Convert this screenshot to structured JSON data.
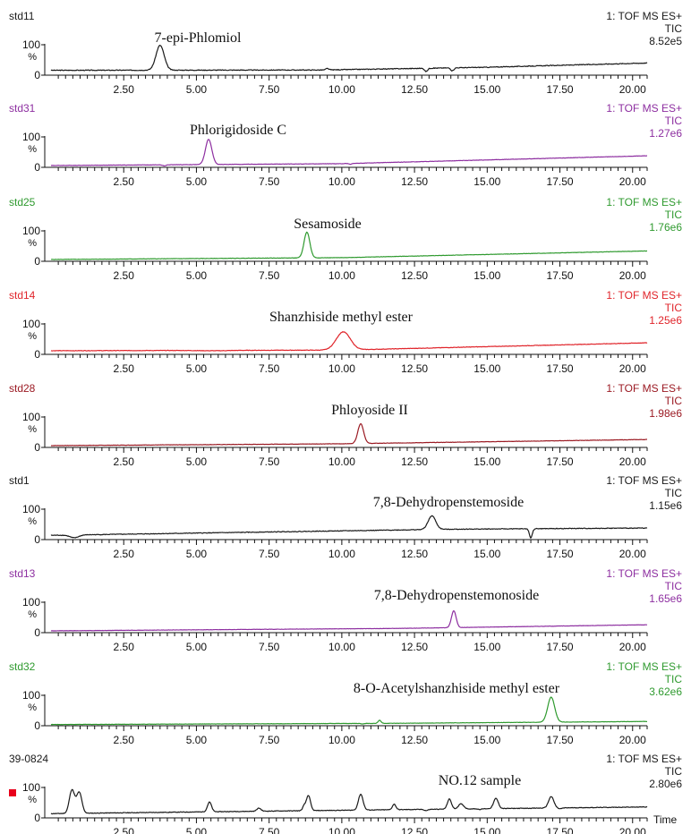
{
  "figure": {
    "x_axis_label": "Time",
    "y_tick_labels": [
      "100",
      "%",
      "0"
    ],
    "x_tick_labels": [
      "2.50",
      "5.00",
      "7.50",
      "10.00",
      "12.50",
      "15.00",
      "17.50",
      "20.00"
    ],
    "marker_color": "#e8001c"
  },
  "chart_data": [
    {
      "type": "line",
      "sample": "std11",
      "instrument": "1: TOF MS ES+",
      "trace_type": "TIC",
      "intensity": "8.52e5",
      "annotation": "7-epi-Phlomiol",
      "color": "#1a1a1a",
      "xlim": [
        0,
        20.5
      ],
      "ylim": [
        0,
        100
      ],
      "peaks": [
        {
          "rt": 3.75,
          "height": 98,
          "width": 0.14
        },
        {
          "rt": 9.5,
          "height": 22,
          "width": 0.05
        },
        {
          "rt": 12.9,
          "height": 12,
          "width": 0.05
        },
        {
          "rt": 13.8,
          "height": 14,
          "width": 0.05
        }
      ],
      "baseline": [
        [
          0,
          16
        ],
        [
          9.3,
          17
        ],
        [
          15,
          26
        ],
        [
          20.5,
          40
        ]
      ],
      "noise": 2.5
    },
    {
      "type": "line",
      "sample": "std31",
      "instrument": "1: TOF MS ES+",
      "trace_type": "TIC",
      "intensity": "1.27e6",
      "annotation": "Phlorigidoside C",
      "color": "#8d2ea0",
      "xlim": [
        0,
        20.5
      ],
      "ylim": [
        0,
        100
      ],
      "peaks": [
        {
          "rt": 5.42,
          "height": 92,
          "width": 0.11
        },
        {
          "rt": 3.9,
          "height": 5,
          "width": 0.06
        },
        {
          "rt": 10.3,
          "height": 10,
          "width": 0.04
        }
      ],
      "baseline": [
        [
          0,
          6
        ],
        [
          10,
          12
        ],
        [
          20.5,
          38
        ]
      ],
      "noise": 1.2
    },
    {
      "type": "line",
      "sample": "std25",
      "instrument": "1: TOF MS ES+",
      "trace_type": "TIC",
      "intensity": "1.76e6",
      "annotation": "Sesamoside",
      "color": "#2f9a2f",
      "xlim": [
        0,
        20.5
      ],
      "ylim": [
        0,
        100
      ],
      "peaks": [
        {
          "rt": 8.8,
          "height": 96,
          "width": 0.1
        },
        {
          "rt": 3.7,
          "height": 8,
          "width": 0.08
        }
      ],
      "baseline": [
        [
          0,
          6
        ],
        [
          10,
          12
        ],
        [
          20.5,
          34
        ]
      ],
      "noise": 1.2
    },
    {
      "type": "line",
      "sample": "std14",
      "instrument": "1: TOF MS ES+",
      "trace_type": "TIC",
      "intensity": "1.25e6",
      "annotation": "Shanzhiside methyl ester",
      "color": "#e0242a",
      "xlim": [
        0,
        20.5
      ],
      "ylim": [
        0,
        100
      ],
      "peaks": [
        {
          "rt": 10.05,
          "height": 74,
          "width": 0.24
        },
        {
          "rt": 5.6,
          "height": 12,
          "width": 0.5
        },
        {
          "rt": 0.85,
          "height": 12,
          "width": 0.06
        }
      ],
      "baseline": [
        [
          0,
          12
        ],
        [
          10,
          14
        ],
        [
          20.5,
          38
        ]
      ],
      "noise": 1.6
    },
    {
      "type": "line",
      "sample": "std28",
      "instrument": "1: TOF MS ES+",
      "trace_type": "TIC",
      "intensity": "1.98e6",
      "annotation": "Phloyoside II",
      "color": "#9b1a23",
      "xlim": [
        0,
        20.5
      ],
      "ylim": [
        0,
        100
      ],
      "peaks": [
        {
          "rt": 10.65,
          "height": 78,
          "width": 0.1
        }
      ],
      "baseline": [
        [
          0,
          6
        ],
        [
          10,
          12
        ],
        [
          20.5,
          26
        ]
      ],
      "noise": 1.2
    },
    {
      "type": "line",
      "sample": "std1",
      "instrument": "1: TOF MS ES+",
      "trace_type": "TIC",
      "intensity": "1.15e6",
      "annotation": "7,8-Dehydropenstemoside",
      "color": "#1a1a1a",
      "xlim": [
        0,
        20.5
      ],
      "ylim": [
        0,
        100
      ],
      "peaks": [
        {
          "rt": 13.1,
          "height": 78,
          "width": 0.13
        },
        {
          "rt": 0.8,
          "height": 6,
          "width": 0.15
        },
        {
          "rt": 16.5,
          "height": 6,
          "width": 0.05
        }
      ],
      "baseline": [
        [
          0,
          14
        ],
        [
          9.5,
          28
        ],
        [
          13.6,
          34
        ],
        [
          20.5,
          38
        ]
      ],
      "noise": 2.2
    },
    {
      "type": "line",
      "sample": "std13",
      "instrument": "1: TOF MS ES+",
      "trace_type": "TIC",
      "intensity": "1.65e6",
      "annotation": "7,8-Dehydropenstemonoside",
      "color": "#8d2ea0",
      "xlim": [
        0,
        20.5
      ],
      "ylim": [
        0,
        100
      ],
      "peaks": [
        {
          "rt": 13.85,
          "height": 72,
          "width": 0.08
        }
      ],
      "baseline": [
        [
          0,
          6
        ],
        [
          12,
          14
        ],
        [
          20.5,
          26
        ]
      ],
      "noise": 1.0
    },
    {
      "type": "line",
      "sample": "std32",
      "instrument": "1: TOF MS ES+",
      "trace_type": "TIC",
      "intensity": "3.62e6",
      "annotation": "8-O-Acetylshanzhiside methyl ester",
      "color": "#2f9a2f",
      "xlim": [
        0,
        20.5
      ],
      "ylim": [
        0,
        100
      ],
      "peaks": [
        {
          "rt": 17.2,
          "height": 94,
          "width": 0.12
        },
        {
          "rt": 11.3,
          "height": 18,
          "width": 0.05
        },
        {
          "rt": 10.7,
          "height": 6,
          "width": 0.05
        }
      ],
      "baseline": [
        [
          0,
          4
        ],
        [
          12,
          8
        ],
        [
          20.5,
          14
        ]
      ],
      "noise": 1.0
    },
    {
      "type": "line",
      "sample": "39-0824",
      "instrument": "1: TOF MS ES+",
      "trace_type": "TIC",
      "intensity": "2.80e6",
      "annotation": "NO.12 sample",
      "color": "#1a1a1a",
      "xlim": [
        0,
        20.5
      ],
      "ylim": [
        0,
        100
      ],
      "peaks": [
        {
          "rt": 0.72,
          "height": 92,
          "width": 0.09
        },
        {
          "rt": 0.97,
          "height": 84,
          "width": 0.09
        },
        {
          "rt": 5.45,
          "height": 52,
          "width": 0.07
        },
        {
          "rt": 7.15,
          "height": 32,
          "width": 0.07
        },
        {
          "rt": 8.7,
          "height": 38,
          "width": 0.05
        },
        {
          "rt": 8.85,
          "height": 74,
          "width": 0.07
        },
        {
          "rt": 10.65,
          "height": 78,
          "width": 0.08
        },
        {
          "rt": 11.8,
          "height": 45,
          "width": 0.06
        },
        {
          "rt": 12.9,
          "height": 24,
          "width": 0.06
        },
        {
          "rt": 13.7,
          "height": 62,
          "width": 0.07
        },
        {
          "rt": 14.1,
          "height": 46,
          "width": 0.09
        },
        {
          "rt": 14.75,
          "height": 28,
          "width": 0.06
        },
        {
          "rt": 15.3,
          "height": 64,
          "width": 0.08
        },
        {
          "rt": 17.2,
          "height": 70,
          "width": 0.09
        },
        {
          "rt": 17.5,
          "height": 30,
          "width": 0.07
        }
      ],
      "baseline": [
        [
          0,
          14
        ],
        [
          9,
          24
        ],
        [
          20.5,
          36
        ]
      ],
      "noise": 2.0
    }
  ]
}
